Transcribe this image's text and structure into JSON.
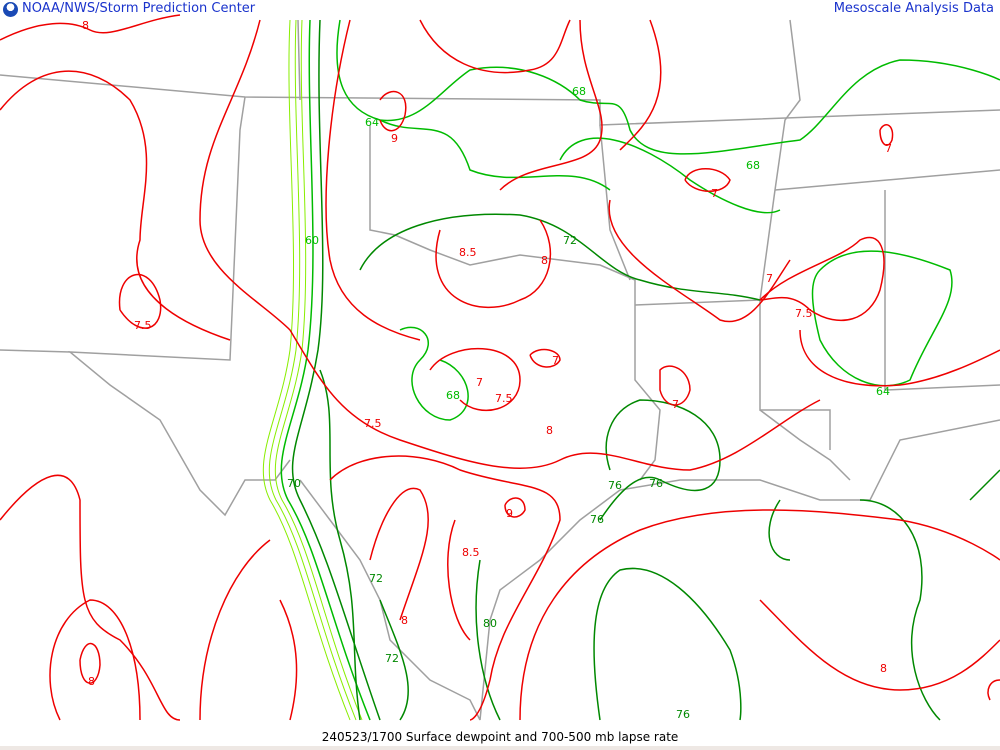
{
  "header": {
    "left_title": "NOAA/NWS/Storm Prediction Center",
    "right_title": "Mesoscale Analysis Data",
    "logo": "noaa-logo"
  },
  "caption": "240523/1700 Surface dewpoint and 700-500 mb lapse rate",
  "colors": {
    "lapse_rate": "#ff0000",
    "dewpoint_dark": "#008800",
    "dewpoint_mid": "#00bb00",
    "dewpoint_light": "#88ee00",
    "borders": "#a0a0a0",
    "header_text": "#1a33cc"
  },
  "lapse_rate_labels": [
    "8",
    "9",
    "7",
    "7",
    "8.5",
    "8",
    "7",
    "7.5",
    "7.5",
    "7",
    "7",
    "7.5",
    "7",
    "7.5",
    "8",
    "9",
    "8.5",
    "8",
    "8",
    "8"
  ],
  "dewpoint_labels": [
    "64",
    "68",
    "68",
    "72",
    "60",
    "68",
    "64",
    "76",
    "76",
    "76",
    "72",
    "72",
    "80",
    "76",
    "70"
  ]
}
